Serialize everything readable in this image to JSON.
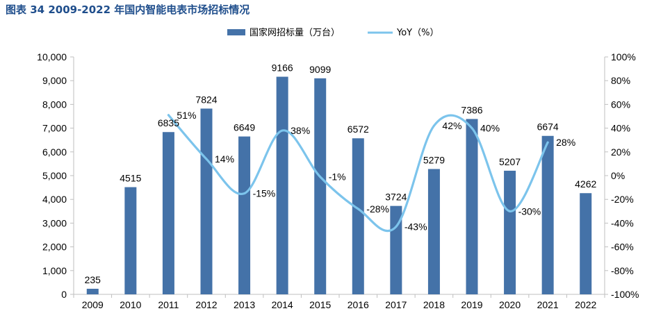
{
  "figure_title": "图表 34 2009-2022 年国内智能电表市场招标情况",
  "chart_data": {
    "type": "bar",
    "categories": [
      "2009",
      "2010",
      "2011",
      "2012",
      "2013",
      "2014",
      "2015",
      "2016",
      "2017",
      "2018",
      "2019",
      "2020",
      "2021",
      "2022"
    ],
    "series": [
      {
        "name": "国家网招标量（万台）",
        "type": "bar",
        "axis": "left",
        "color": "#4472a8",
        "values": [
          235,
          4515,
          6835,
          7824,
          6649,
          9166,
          9099,
          6572,
          3724,
          5279,
          7386,
          5207,
          6674,
          4262
        ],
        "labels": [
          "235",
          "4515",
          "6835",
          "7824",
          "6649",
          "9166",
          "9099",
          "6572",
          "3724",
          "5279",
          "7386",
          "5207",
          "6674",
          "4262"
        ]
      },
      {
        "name": "YoY（%）",
        "type": "line",
        "axis": "right",
        "color": "#7cc4ec",
        "values": [
          null,
          null,
          51,
          14,
          -15,
          38,
          -1,
          -28,
          -43,
          42,
          40,
          -30,
          28,
          null
        ],
        "labels": [
          "",
          "",
          "51%",
          "14%",
          "-15%",
          "38%",
          "-1%",
          "-28%",
          "-43%",
          "42%",
          "40%",
          "-30%",
          "28%",
          ""
        ]
      }
    ],
    "y_left": {
      "min": 0,
      "max": 10000,
      "ticks": [
        0,
        1000,
        2000,
        3000,
        4000,
        5000,
        6000,
        7000,
        8000,
        9000,
        10000
      ],
      "tick_labels": [
        "0",
        "1,000",
        "2,000",
        "3,000",
        "4,000",
        "5,000",
        "6,000",
        "7,000",
        "8,000",
        "9,000",
        "10,000"
      ]
    },
    "y_right": {
      "min": -100,
      "max": 100,
      "ticks": [
        -100,
        -80,
        -60,
        -40,
        -20,
        0,
        20,
        40,
        60,
        80,
        100
      ],
      "tick_labels": [
        "-100%",
        "-80%",
        "-60%",
        "-40%",
        "-20%",
        "0%",
        "20%",
        "40%",
        "60%",
        "80%",
        "100%"
      ]
    },
    "legend": {
      "position": "top-center"
    },
    "grid": false
  }
}
